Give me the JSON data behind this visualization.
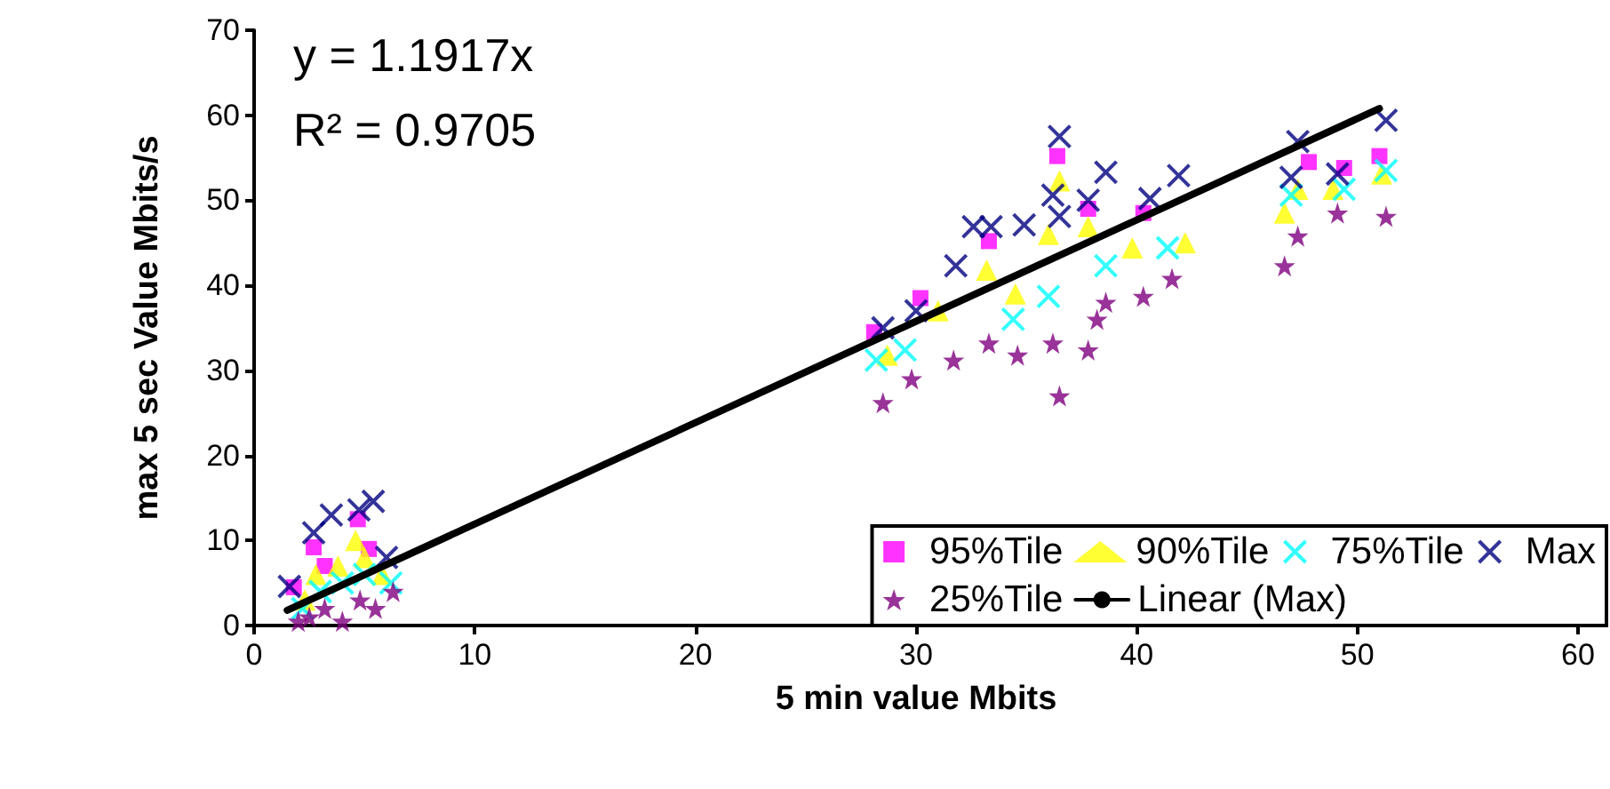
{
  "chart_data": {
    "type": "scatter",
    "xlabel": "5 min value Mbits",
    "ylabel": "max 5 sec Value Mbits/s",
    "xlim": [
      0,
      60
    ],
    "xticks": [
      0,
      10,
      20,
      30,
      40,
      50,
      60
    ],
    "ylim": [
      0,
      70
    ],
    "yticks": [
      0,
      10,
      20,
      30,
      40,
      50,
      60,
      70
    ],
    "grid": false,
    "legend": "bottom right",
    "annotations": [
      "y = 1.1917x",
      "R² = 0.9705"
    ],
    "series": [
      {
        "name": "95%Tile",
        "color": "#ff00ff",
        "marker": "square",
        "x": [
          1.8,
          2.7,
          3.2,
          4.7,
          5.2,
          28.1,
          30.2,
          33.3,
          36.4,
          37.8,
          40.3,
          47.8,
          49.4,
          51
        ],
        "values": [
          4.5,
          9.2,
          7,
          12.5,
          9,
          34.5,
          38.5,
          45.2,
          55.2,
          49,
          48.5,
          54.5,
          53.8,
          55.2
        ]
      },
      {
        "name": "90%Tile",
        "color": "#ffff00",
        "marker": "triangle",
        "x": [
          2.3,
          2.8,
          3.8,
          4.6,
          5,
          5.8,
          28.7,
          31,
          33.2,
          34.5,
          36,
          36.5,
          37.8,
          39.8,
          42.2,
          46.7,
          47.3,
          48.9,
          51.1
        ],
        "values": [
          3,
          6,
          7,
          10,
          8,
          6,
          31.8,
          37,
          41.8,
          39,
          46,
          52.3,
          46.9,
          44.4,
          45,
          48.5,
          51.3,
          51.3,
          53.1
        ]
      },
      {
        "name": "75%Tile",
        "color": "#00ffff",
        "marker": "cross",
        "x": [
          2.2,
          3,
          4,
          5,
          6.2,
          28.2,
          29.5,
          34.4,
          36,
          38.6,
          41.4,
          47,
          49.4,
          51.3
        ],
        "values": [
          2,
          4,
          5,
          6,
          5,
          31.2,
          32.4,
          36,
          38.7,
          42.3,
          44.4,
          50.6,
          51.3,
          53.5
        ]
      },
      {
        "name": "Max",
        "color": "#000080",
        "marker": "cross",
        "x": [
          1.6,
          2.7,
          3.5,
          4.75,
          5.4,
          6,
          28.5,
          30,
          31.8,
          32.6,
          33.4,
          34.9,
          36.2,
          36.5,
          36.5,
          37.8,
          38.6,
          40.6,
          41.9,
          47,
          47.3,
          49.1,
          51.3
        ],
        "values": [
          4.6,
          10.9,
          13,
          13.6,
          14.6,
          8,
          35,
          37,
          42.3,
          46.9,
          46.9,
          47.1,
          50.6,
          48.1,
          57.5,
          50,
          53.3,
          50.2,
          52.9,
          52.7,
          56.9,
          53.1,
          59.4
        ]
      },
      {
        "name": "25%Tile",
        "color": "#800080",
        "marker": "star",
        "x": [
          2,
          2.5,
          3.2,
          4,
          4.8,
          5.5,
          6.3,
          28.5,
          29.8,
          31.7,
          33.3,
          34.6,
          36.2,
          36.5,
          37.8,
          38.2,
          38.6,
          40.3,
          41.6,
          46.7,
          47.3,
          49.1,
          51.3
        ],
        "values": [
          0.5,
          1,
          2,
          0.5,
          3,
          2,
          4,
          26.2,
          29,
          31.2,
          33.2,
          31.8,
          33.2,
          27,
          32.4,
          36,
          38,
          38.7,
          40.8,
          42.3,
          45.8,
          48.5,
          48.1
        ]
      },
      {
        "name": "Linear (Max)",
        "color": "#000000",
        "type": "line",
        "marker": "none",
        "line_style": "solid",
        "x": [
          1.5,
          51
        ],
        "values": [
          1.8,
          60.8
        ]
      }
    ]
  }
}
